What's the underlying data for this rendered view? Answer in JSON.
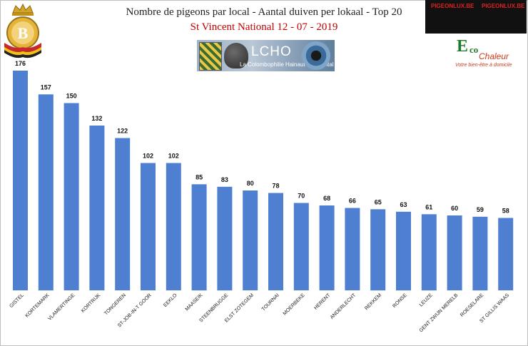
{
  "header": {
    "title": "Nombre de pigeons par local - Aantal duiven per lokaal - Top 20",
    "subtitle": "St Vincent National 12 - 07 - 2019"
  },
  "banner": {
    "name": "LCHO",
    "subtitle": "La Colombophilie Hainaut Occidental"
  },
  "ad": {
    "brand_left": "PIGEONLUX.BE",
    "brand_right": "PIGEONLUX.BE"
  },
  "eco": {
    "e": "E",
    "co": "co",
    "chaleur": "Chaleur",
    "tagline": "Votre bien-être à domicile"
  },
  "colors": {
    "bar": "#4f7fd0",
    "title": "#1f1f1f",
    "subtitle": "#c00000"
  },
  "chart_data": {
    "type": "bar",
    "title": "Nombre de pigeons par local - Aantal duiven per lokaal - Top 20",
    "subtitle": "St Vincent National 12 - 07 - 2019",
    "categories": [
      "GISTEL",
      "KORTEMARK",
      "VLAMERTINGE",
      "KORTRIJK",
      "TONGEREN",
      "ST-JOB-IN-T GOOR",
      "EEKLO",
      "MAASEIK",
      "STEENBRUGGE",
      "ELST ZOTEGEM",
      "TOURNAI",
      "MOERBEKE",
      "HERENT",
      "ANDERLECHT",
      "REKKEM",
      "RONSE",
      "LEUZE",
      "GENT ZWIJN MERELB",
      "ROESELARE",
      "ST GILLIS WAAS"
    ],
    "values": [
      176,
      157,
      150,
      132,
      122,
      102,
      102,
      85,
      83,
      80,
      78,
      70,
      68,
      66,
      65,
      63,
      61,
      60,
      59,
      58
    ],
    "ylim": [
      0,
      190
    ],
    "grid": false,
    "data_labels": true
  }
}
